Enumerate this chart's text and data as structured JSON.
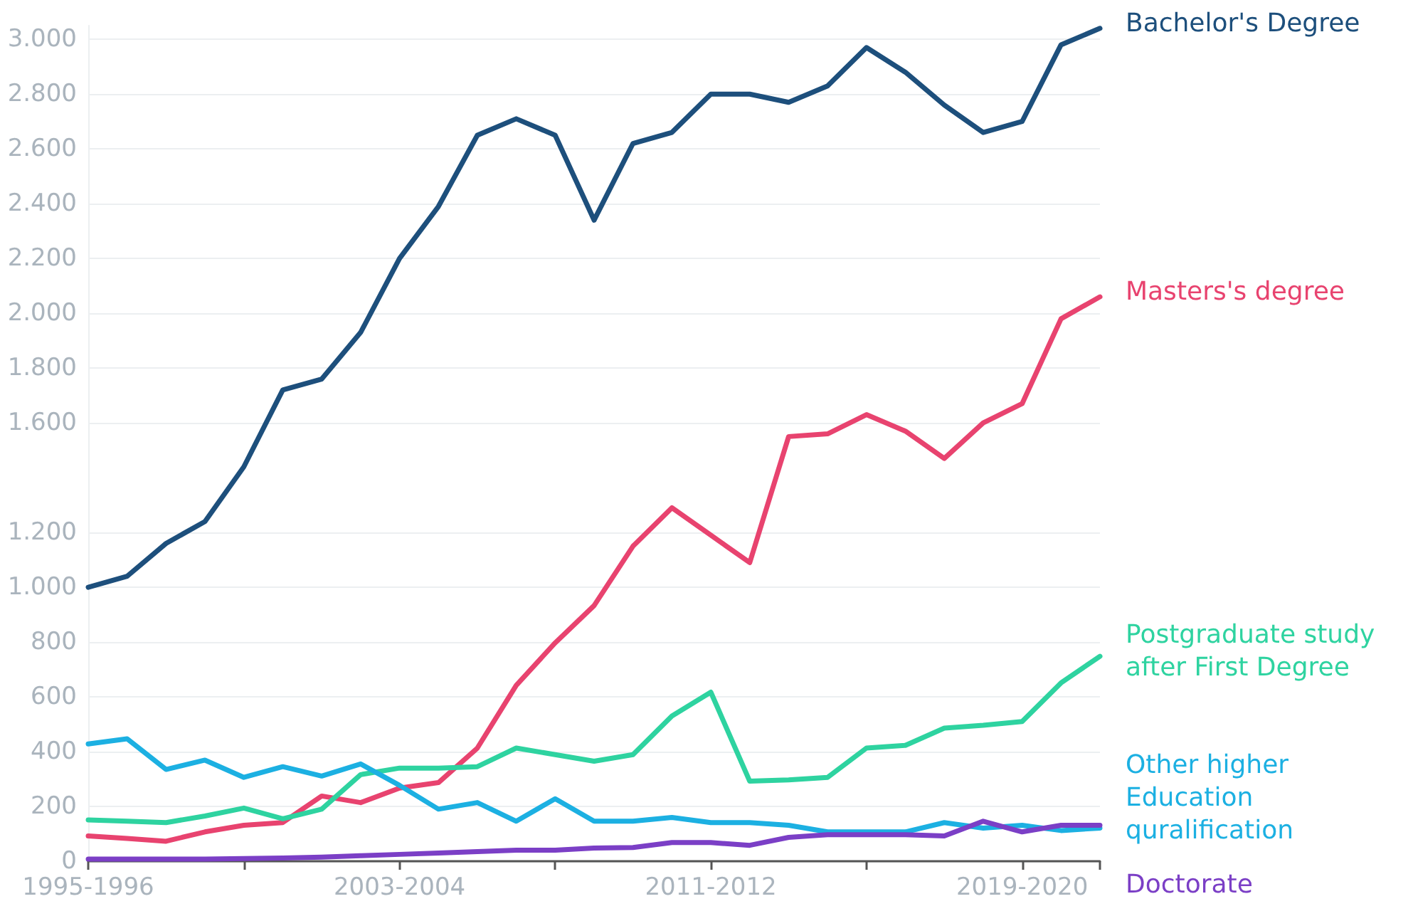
{
  "chart_data": {
    "type": "line",
    "categories": [
      "1995-1996",
      null,
      null,
      null,
      null,
      null,
      null,
      null,
      "2003-2004",
      null,
      null,
      null,
      null,
      null,
      null,
      null,
      "2011-2012",
      null,
      null,
      null,
      null,
      null,
      null,
      null,
      "2019-2020",
      null,
      null
    ],
    "series": [
      {
        "name": "Bachelor's Degree",
        "color": "#1d4f7c",
        "values": [
          1000,
          1040,
          1160,
          1240,
          1440,
          1720,
          1760,
          1930,
          2200,
          2390,
          2650,
          2710,
          2650,
          2340,
          2620,
          2660,
          2800,
          2800,
          2770,
          2830,
          2970,
          2880,
          2760,
          2660,
          2700,
          2980,
          3040
        ]
      },
      {
        "name": "Masters's degree",
        "color": "#e8436f",
        "values": [
          92,
          83,
          73,
          107,
          131,
          141,
          238,
          214,
          267,
          287,
          413,
          642,
          797,
          933,
          1150,
          1290,
          1190,
          1090,
          1550,
          1560,
          1630,
          1570,
          1470,
          1600,
          1670,
          1980,
          2060
        ]
      },
      {
        "name": "Postgraduate study after First Degree",
        "color": "#2ed3a0",
        "values": [
          151,
          146,
          141,
          165,
          194,
          155,
          190,
          316,
          340,
          340,
          345,
          413,
          389,
          365,
          389,
          530,
          617,
          292,
          297,
          306,
          413,
          423,
          486,
          496,
          510,
          651,
          748
        ]
      },
      {
        "name": "Other higher Education quralification",
        "color": "#1cb0e2",
        "values": [
          428,
          447,
          335,
          369,
          306,
          345,
          311,
          355,
          277,
          190,
          214,
          146,
          228,
          146,
          146,
          160,
          141,
          141,
          131,
          107,
          107,
          107,
          141,
          121,
          131,
          112,
          121
        ]
      },
      {
        "name": "Doctorate",
        "color": "#7b3fc6",
        "values": [
          8,
          8,
          8,
          8,
          10,
          12,
          15,
          20,
          25,
          30,
          35,
          40,
          40,
          48,
          50,
          68,
          68,
          58,
          87,
          97,
          97,
          97,
          92,
          146,
          107,
          131,
          131
        ]
      }
    ],
    "ylim": [
      0,
      3050
    ],
    "yticks": [
      0,
      200,
      400,
      600,
      800,
      {
        "value": 1000,
        "label": "1.000"
      },
      {
        "value": 1200,
        "label": "1.200"
      },
      {
        "value": 1600,
        "label": "1.600"
      },
      {
        "value": 1800,
        "label": "1.800"
      },
      {
        "value": 2000,
        "label": "2.000"
      },
      {
        "value": 2200,
        "label": "2.200"
      },
      {
        "value": 2400,
        "label": "2.400"
      },
      {
        "value": 2600,
        "label": "2.600"
      },
      {
        "value": 2800,
        "label": "2.800"
      },
      {
        "value": 3000,
        "label": "3.000"
      }
    ],
    "grid": "y",
    "marker": "none",
    "line_style": "solid"
  }
}
